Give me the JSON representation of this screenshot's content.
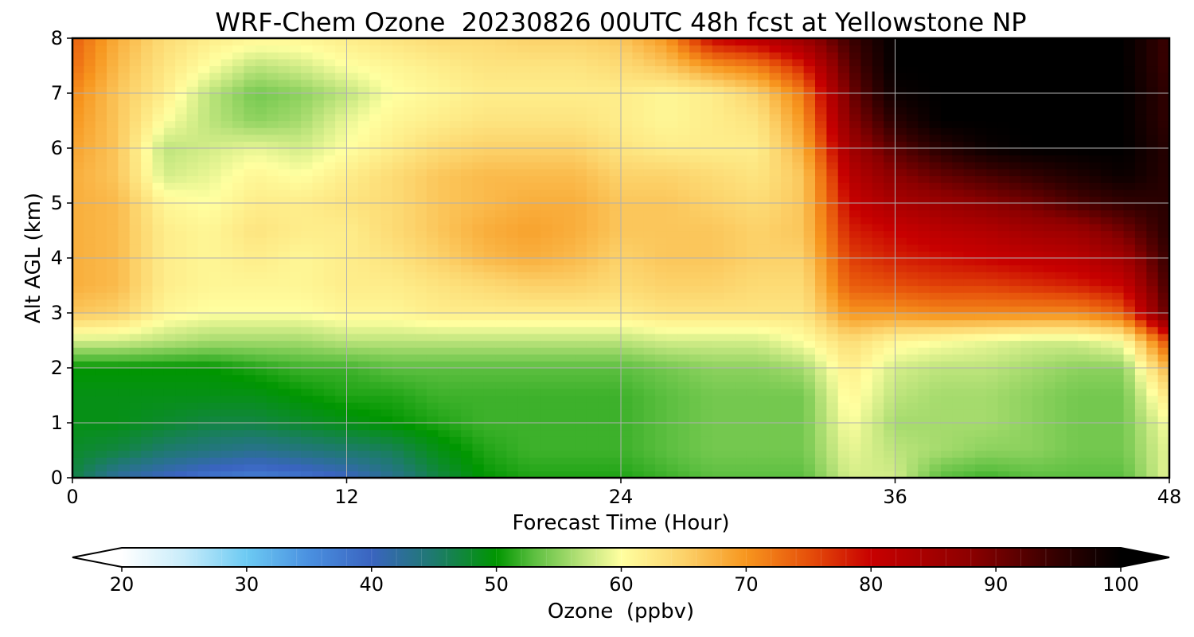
{
  "chart_data": {
    "type": "heatmap",
    "title": "WRF-Chem Ozone  20230826 00UTC 48h fcst at Yellowstone NP",
    "xlabel": "Forecast Time (Hour)",
    "ylabel": "Alt AGL (km)",
    "xlim": [
      0,
      48
    ],
    "ylim": [
      0,
      8
    ],
    "xticks": [
      "0",
      "12",
      "24",
      "36",
      "48"
    ],
    "yticks": [
      "0",
      "1",
      "2",
      "3",
      "4",
      "5",
      "6",
      "7",
      "8"
    ],
    "grid": true,
    "x_hours": [
      0,
      2,
      4,
      6,
      8,
      10,
      12,
      14,
      16,
      18,
      20,
      22,
      24,
      26,
      28,
      30,
      32,
      34,
      36,
      38,
      40,
      42,
      44,
      46,
      48
    ],
    "y_km": [
      0,
      0.5,
      1,
      1.5,
      2,
      2.5,
      3,
      3.5,
      4,
      4.5,
      5,
      5.5,
      6,
      6.5,
      7,
      7.5,
      8
    ],
    "z_ozone_ppbv": [
      [
        47,
        42,
        40,
        38,
        37,
        38,
        40,
        43,
        47,
        50,
        51,
        51,
        51,
        52,
        53,
        53,
        53,
        58,
        58,
        53,
        52,
        53,
        53,
        53,
        59
      ],
      [
        48,
        47,
        45,
        44,
        43,
        44,
        45,
        46,
        49,
        51,
        52,
        52,
        52,
        53,
        54,
        54,
        54,
        59,
        57,
        56,
        55,
        55,
        54,
        54,
        59
      ],
      [
        49,
        49,
        48,
        47,
        47,
        48,
        49,
        50,
        51,
        52,
        52,
        52,
        52,
        53,
        54,
        54,
        54,
        60,
        56,
        56,
        56,
        55,
        54,
        54,
        60
      ],
      [
        49,
        49,
        49,
        49,
        49,
        50,
        51,
        51,
        52,
        52,
        52,
        52,
        52,
        53,
        54,
        54,
        54,
        61,
        57,
        56,
        56,
        55,
        54,
        54,
        63
      ],
      [
        50,
        50,
        50,
        50,
        51,
        52,
        52,
        53,
        53,
        53,
        53,
        53,
        53,
        54,
        55,
        55,
        56,
        62,
        58,
        57,
        57,
        56,
        55,
        55,
        68
      ],
      [
        58,
        58,
        57,
        56,
        56,
        56,
        57,
        57,
        57,
        57,
        57,
        57,
        57,
        58,
        58,
        58,
        60,
        64,
        61,
        60,
        59,
        58,
        58,
        60,
        76
      ],
      [
        66,
        65,
        61,
        60,
        60,
        60,
        61,
        61,
        62,
        62,
        62,
        62,
        62,
        63,
        63,
        63,
        63,
        70,
        70,
        71,
        71,
        71,
        71,
        74,
        92
      ],
      [
        68,
        67,
        62,
        61,
        61,
        61,
        62,
        62,
        63,
        64,
        65,
        65,
        64,
        65,
        65,
        64,
        64,
        74,
        75,
        76,
        76,
        77,
        78,
        80,
        94
      ],
      [
        68,
        67,
        62,
        61,
        62,
        61,
        62,
        63,
        65,
        67,
        68,
        67,
        65,
        66,
        66,
        65,
        65,
        76,
        78,
        79,
        80,
        81,
        82,
        85,
        95
      ],
      [
        68,
        67,
        62,
        61,
        63,
        62,
        62,
        64,
        66,
        68,
        69,
        68,
        66,
        66,
        66,
        65,
        66,
        78,
        80,
        82,
        83,
        85,
        86,
        90,
        96
      ],
      [
        68,
        67,
        61,
        60,
        62,
        62,
        63,
        64,
        66,
        67,
        68,
        68,
        66,
        66,
        65,
        64,
        66,
        80,
        84,
        86,
        88,
        90,
        93,
        95,
        96
      ],
      [
        68,
        66,
        58,
        59,
        61,
        60,
        62,
        64,
        66,
        67,
        67,
        67,
        65,
        65,
        64,
        63,
        66,
        82,
        88,
        91,
        93,
        95,
        97,
        99,
        96
      ],
      [
        69,
        66,
        57,
        58,
        59,
        58,
        60,
        62,
        64,
        65,
        65,
        65,
        63,
        62,
        62,
        62,
        68,
        85,
        92,
        96,
        99,
        100,
        100,
        100,
        96
      ],
      [
        70,
        66,
        60,
        57,
        55,
        56,
        59,
        61,
        62,
        63,
        63,
        63,
        62,
        61,
        62,
        63,
        70,
        88,
        96,
        100,
        100,
        100,
        100,
        100,
        95
      ],
      [
        71,
        66,
        62,
        57,
        54,
        55,
        57,
        60,
        61,
        62,
        62,
        62,
        62,
        61,
        62,
        65,
        72,
        90,
        99,
        100,
        100,
        100,
        100,
        100,
        95
      ],
      [
        73,
        67,
        63,
        60,
        57,
        58,
        60,
        61,
        62,
        63,
        63,
        63,
        64,
        66,
        70,
        72,
        78,
        92,
        100,
        100,
        100,
        100,
        100,
        100,
        94
      ],
      [
        74,
        68,
        64,
        62,
        61,
        61,
        62,
        63,
        64,
        64,
        65,
        65,
        66,
        70,
        80,
        82,
        86,
        94,
        100,
        100,
        100,
        100,
        100,
        100,
        94
      ]
    ],
    "colorbar": {
      "label": "Ozone  (ppbv)",
      "ticks": [
        "20",
        "30",
        "40",
        "50",
        "60",
        "70",
        "80",
        "90",
        "100"
      ],
      "min": 20,
      "max": 100,
      "extend": "both",
      "stops": [
        {
          "v": 20,
          "c": "#ffffff"
        },
        {
          "v": 25,
          "c": "#c8ecfa"
        },
        {
          "v": 30,
          "c": "#6ccaf3"
        },
        {
          "v": 35,
          "c": "#4a90e0"
        },
        {
          "v": 40,
          "c": "#3a64c0"
        },
        {
          "v": 45,
          "c": "#1e7a6e"
        },
        {
          "v": 50,
          "c": "#009600"
        },
        {
          "v": 53,
          "c": "#5cbf40"
        },
        {
          "v": 57,
          "c": "#bde47c"
        },
        {
          "v": 60,
          "c": "#ffffa0"
        },
        {
          "v": 65,
          "c": "#fcd26a"
        },
        {
          "v": 70,
          "c": "#f7961e"
        },
        {
          "v": 75,
          "c": "#e6500a"
        },
        {
          "v": 80,
          "c": "#c80000"
        },
        {
          "v": 88,
          "c": "#8c0000"
        },
        {
          "v": 95,
          "c": "#320000"
        },
        {
          "v": 100,
          "c": "#000000"
        }
      ]
    }
  }
}
